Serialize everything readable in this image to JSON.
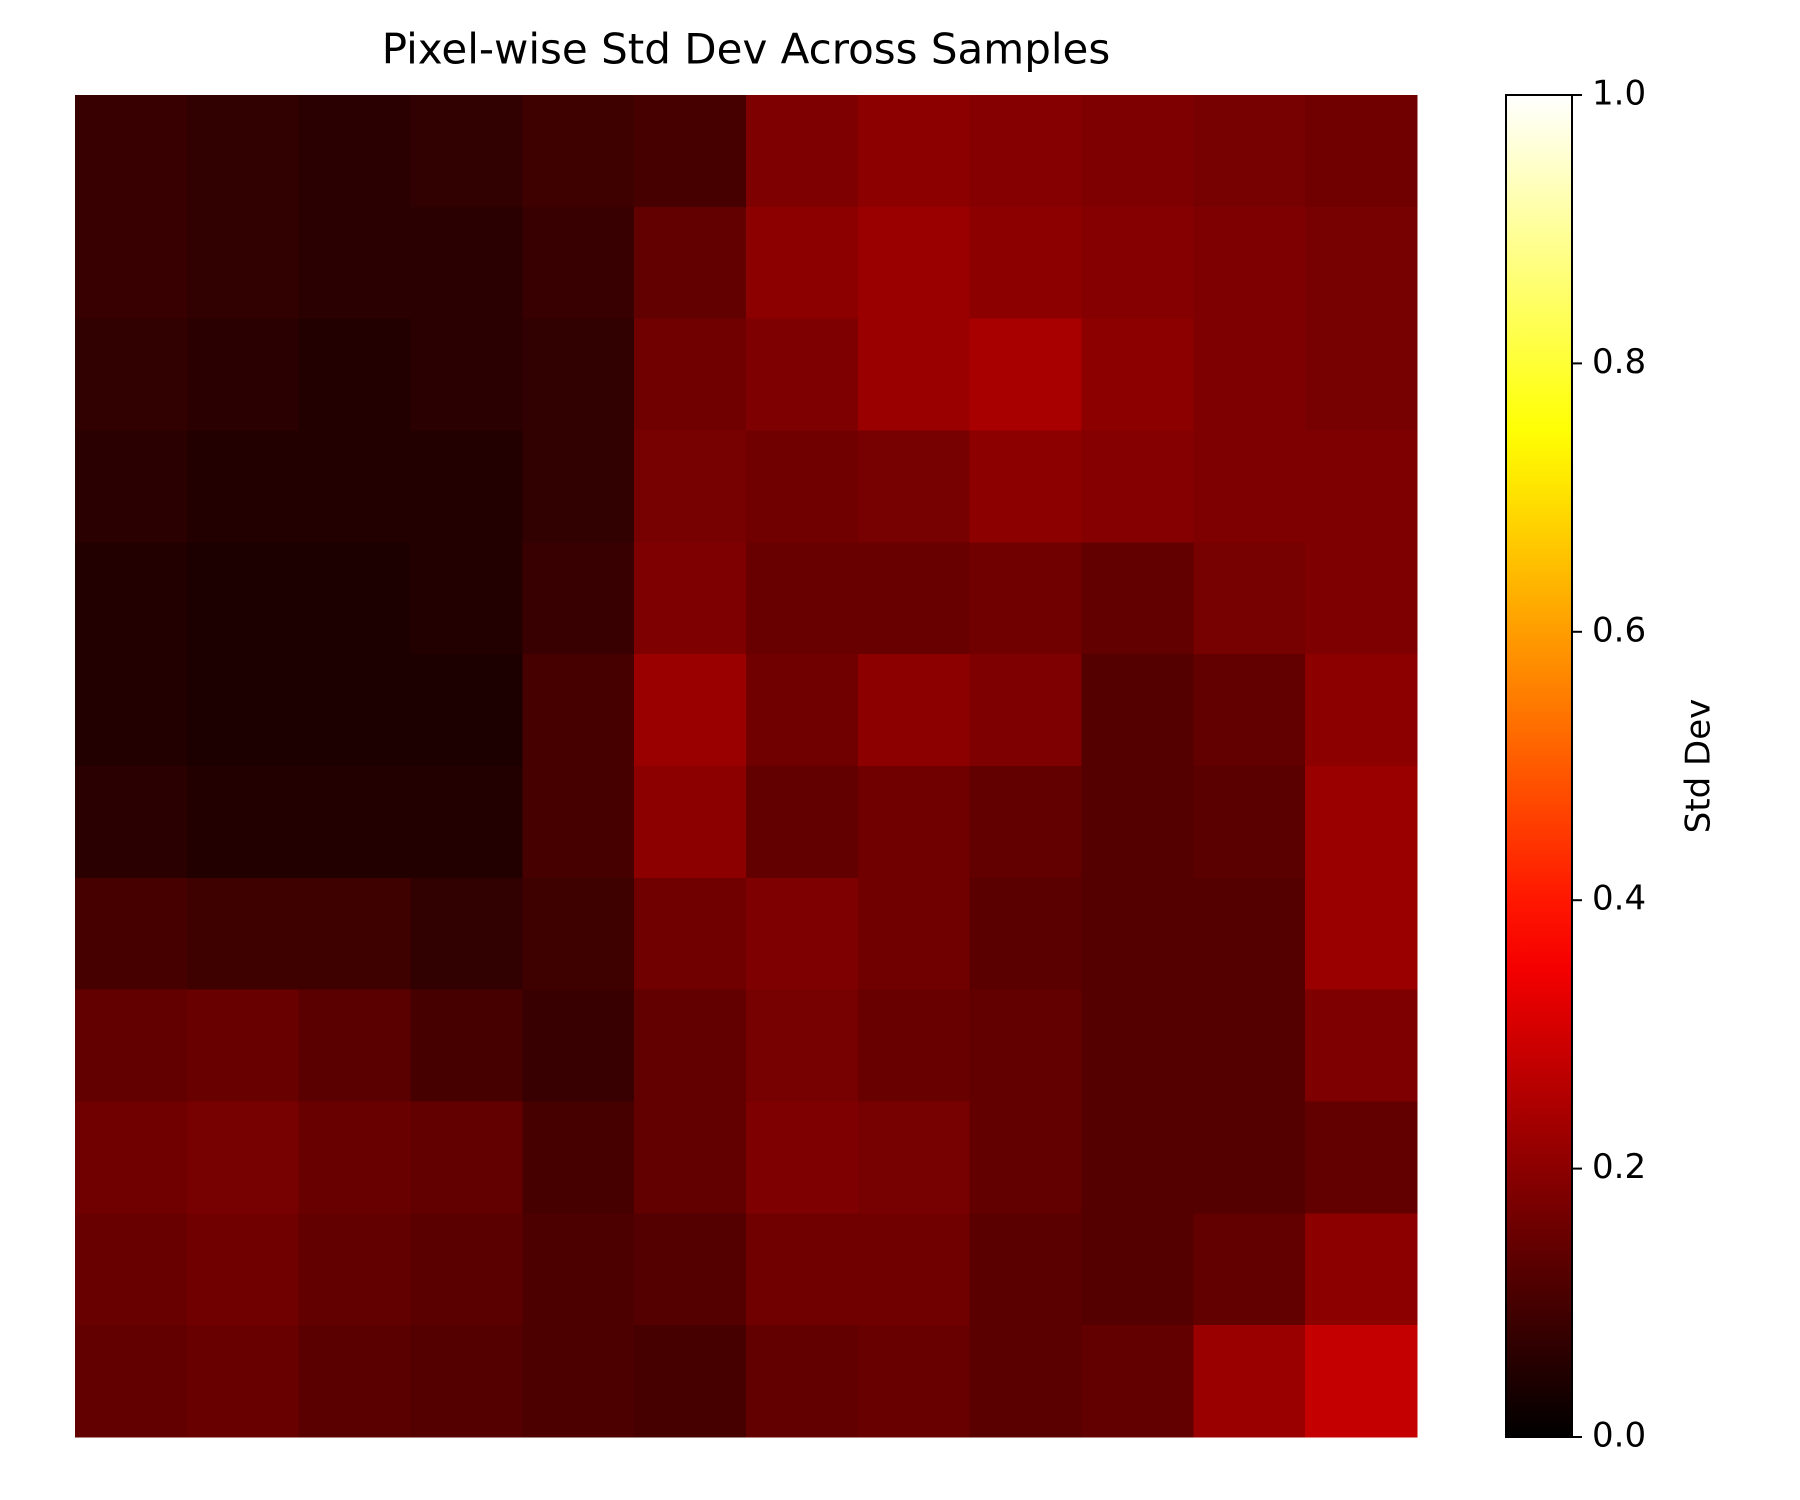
{
  "chart_data": {
    "type": "heatmap",
    "title": "Pixel-wise Std Dev Across Samples",
    "colormap": "hot",
    "z": [
      [
        0.08,
        0.07,
        0.06,
        0.07,
        0.09,
        0.1,
        0.18,
        0.2,
        0.19,
        0.18,
        0.17,
        0.16
      ],
      [
        0.08,
        0.07,
        0.06,
        0.06,
        0.08,
        0.14,
        0.2,
        0.22,
        0.2,
        0.19,
        0.18,
        0.17
      ],
      [
        0.07,
        0.06,
        0.05,
        0.06,
        0.07,
        0.16,
        0.18,
        0.22,
        0.24,
        0.2,
        0.18,
        0.17
      ],
      [
        0.06,
        0.05,
        0.05,
        0.05,
        0.07,
        0.17,
        0.16,
        0.17,
        0.2,
        0.19,
        0.18,
        0.18
      ],
      [
        0.05,
        0.04,
        0.04,
        0.05,
        0.08,
        0.18,
        0.15,
        0.15,
        0.16,
        0.14,
        0.17,
        0.18
      ],
      [
        0.05,
        0.04,
        0.04,
        0.04,
        0.1,
        0.22,
        0.16,
        0.2,
        0.18,
        0.12,
        0.14,
        0.2
      ],
      [
        0.06,
        0.05,
        0.05,
        0.05,
        0.1,
        0.2,
        0.14,
        0.16,
        0.14,
        0.12,
        0.13,
        0.22
      ],
      [
        0.1,
        0.09,
        0.09,
        0.07,
        0.09,
        0.16,
        0.18,
        0.16,
        0.13,
        0.12,
        0.12,
        0.22
      ],
      [
        0.14,
        0.15,
        0.13,
        0.1,
        0.08,
        0.14,
        0.17,
        0.15,
        0.14,
        0.12,
        0.12,
        0.18
      ],
      [
        0.16,
        0.17,
        0.15,
        0.14,
        0.1,
        0.14,
        0.18,
        0.17,
        0.14,
        0.12,
        0.12,
        0.14
      ],
      [
        0.15,
        0.16,
        0.14,
        0.13,
        0.11,
        0.12,
        0.16,
        0.16,
        0.13,
        0.12,
        0.14,
        0.2
      ],
      [
        0.14,
        0.15,
        0.13,
        0.12,
        0.11,
        0.1,
        0.14,
        0.15,
        0.13,
        0.14,
        0.22,
        0.28
      ]
    ],
    "colorbar_label": "Std Dev",
    "clim": [
      0,
      1
    ],
    "cticks": [
      {
        "value": 0,
        "label": "0.0"
      },
      0.2,
      0.4,
      0.6,
      0.8,
      {
        "value": 1,
        "label": "1.0"
      }
    ]
  }
}
